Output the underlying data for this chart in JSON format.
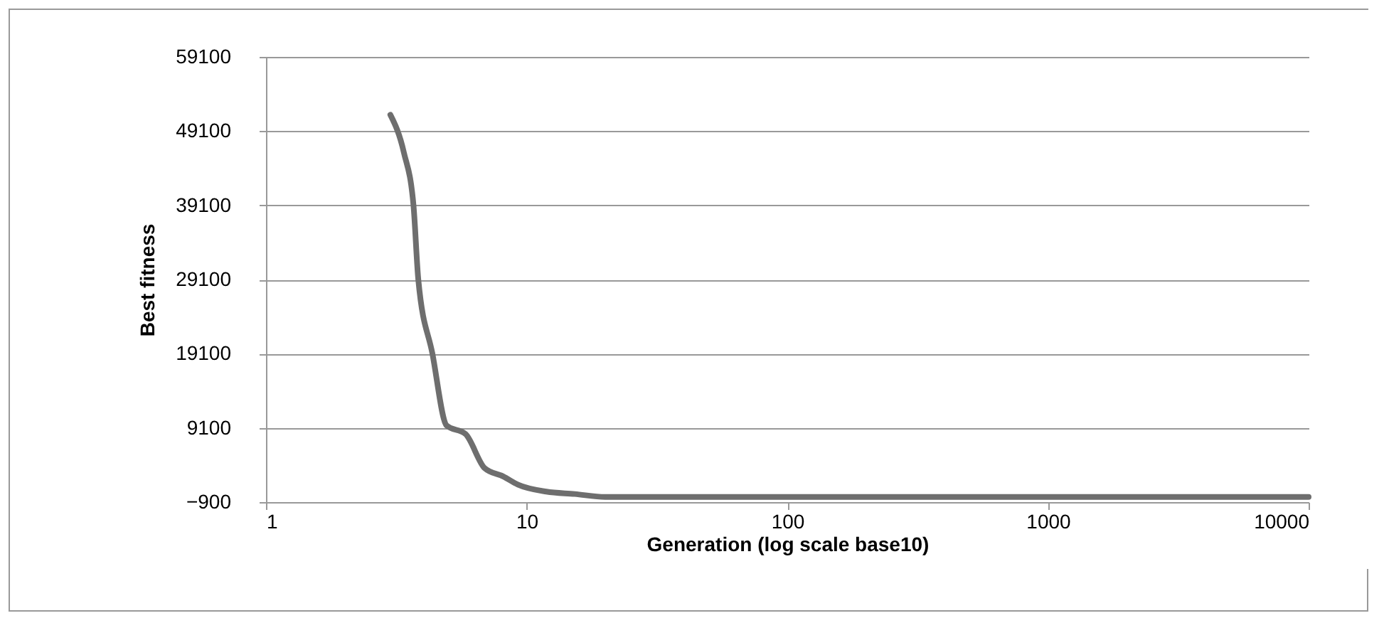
{
  "chart_data": {
    "type": "line",
    "xlabel": "Generation (log scale base10)",
    "ylabel": "Best fitness",
    "log": "x",
    "x": [
      3,
      3.38,
      3.68,
      3.84,
      4.35,
      4.93,
      5.83,
      6.9,
      8.15,
      9.25,
      11.9,
      15.3,
      20,
      100,
      1000,
      10000
    ],
    "series": [
      {
        "color": "#6e6e6e",
        "values": [
          51300,
          46230,
          39100,
          29100,
          19100,
          9420,
          8270,
          3680,
          2540,
          1460,
          510,
          190,
          -200,
          -200,
          -200,
          -200
        ]
      }
    ],
    "xlim": [
      1,
      10000
    ],
    "xticks": [
      1,
      10,
      100,
      1000,
      10000
    ],
    "ylim": [
      -900,
      59100
    ],
    "yticks": [
      -900,
      9100,
      19100,
      29100,
      39100,
      49100,
      59100
    ],
    "grid": "y",
    "legend": false,
    "marker": "none",
    "line_style": "solid"
  }
}
